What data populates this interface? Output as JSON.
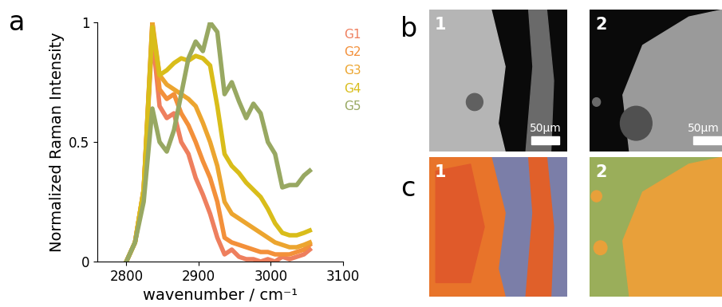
{
  "chart_data": {
    "type": "line",
    "xlabel": "wavenumber / cm⁻¹",
    "ylabel": "Normalized Raman Intensity",
    "xlim": [
      2760,
      3100
    ],
    "xticks": [
      2800,
      2900,
      3000,
      3100
    ],
    "ylim": [
      0,
      1
    ],
    "yticks": [
      0,
      0.5,
      1
    ],
    "legend": "upper right",
    "x": [
      2800,
      2812,
      2824,
      2836,
      2846,
      2856,
      2866,
      2876,
      2886,
      2896,
      2906,
      2916,
      2926,
      2936,
      2946,
      2956,
      2966,
      2976,
      2986,
      2996,
      3006,
      3016,
      3026,
      3036,
      3046,
      3054
    ],
    "series": [
      {
        "name": "G1",
        "color": "#ee7f5e",
        "values": [
          0,
          0.08,
          0.3,
          0.95,
          0.65,
          0.6,
          0.62,
          0.5,
          0.45,
          0.35,
          0.28,
          0.2,
          0.1,
          0.03,
          0.05,
          0.02,
          0.01,
          0.01,
          0.0,
          0.01,
          0.0,
          0.02,
          0.01,
          0.02,
          0.03,
          0.05
        ]
      },
      {
        "name": "G2",
        "color": "#f3903a",
        "values": [
          0,
          0.08,
          0.3,
          1.0,
          0.72,
          0.68,
          0.7,
          0.62,
          0.57,
          0.5,
          0.42,
          0.35,
          0.25,
          0.1,
          0.08,
          0.07,
          0.06,
          0.05,
          0.04,
          0.04,
          0.03,
          0.03,
          0.03,
          0.04,
          0.05,
          0.07
        ]
      },
      {
        "name": "G3",
        "color": "#eca52f",
        "values": [
          0,
          0.08,
          0.3,
          1.0,
          0.78,
          0.74,
          0.72,
          0.7,
          0.68,
          0.65,
          0.58,
          0.5,
          0.4,
          0.25,
          0.2,
          0.18,
          0.16,
          0.14,
          0.12,
          0.1,
          0.08,
          0.07,
          0.06,
          0.06,
          0.07,
          0.08
        ]
      },
      {
        "name": "G4",
        "color": "#d9bd1a",
        "values": [
          0,
          0.08,
          0.3,
          0.98,
          0.78,
          0.8,
          0.83,
          0.85,
          0.84,
          0.86,
          0.85,
          0.82,
          0.65,
          0.45,
          0.4,
          0.37,
          0.33,
          0.3,
          0.27,
          0.22,
          0.16,
          0.12,
          0.11,
          0.11,
          0.12,
          0.13
        ]
      },
      {
        "name": "G5",
        "color": "#98a862",
        "values": [
          0,
          0.08,
          0.25,
          0.64,
          0.5,
          0.46,
          0.55,
          0.7,
          0.85,
          0.92,
          0.88,
          1.0,
          0.96,
          0.7,
          0.75,
          0.67,
          0.6,
          0.66,
          0.62,
          0.5,
          0.45,
          0.31,
          0.32,
          0.32,
          0.36,
          0.38
        ]
      }
    ]
  },
  "panel_labels": [
    "a",
    "b",
    "c"
  ],
  "image_panels": {
    "b": {
      "images": [
        "1",
        "2"
      ],
      "scale_bar": "50µm"
    },
    "c": {
      "images": [
        "1",
        "2"
      ]
    }
  }
}
